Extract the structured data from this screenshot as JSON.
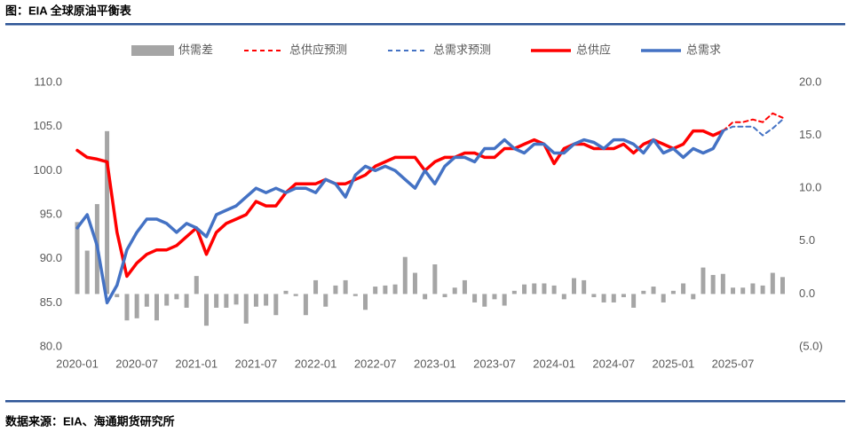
{
  "title": "图：EIA 全球原油平衡表",
  "source": "数据来源：EIA、海通期货研究所",
  "chart_data": {
    "type": "combo",
    "categories": [
      "2020-01",
      null,
      null,
      null,
      null,
      null,
      "2020-07",
      null,
      null,
      null,
      null,
      null,
      "2021-01",
      null,
      null,
      null,
      null,
      null,
      "2021-07",
      null,
      null,
      null,
      null,
      null,
      "2022-01",
      null,
      null,
      null,
      null,
      null,
      "2022-07",
      null,
      null,
      null,
      null,
      null,
      "2023-01",
      null,
      null,
      null,
      null,
      null,
      "2023-07",
      null,
      null,
      null,
      null,
      null,
      "2024-01",
      null,
      null,
      null,
      null,
      null,
      "2024-07",
      null,
      null,
      null,
      null,
      null,
      "2025-01",
      null,
      null,
      null,
      null,
      null,
      "2025-07",
      null,
      null,
      null,
      null,
      null
    ],
    "ylim": [
      80,
      110
    ],
    "yticks": [
      {
        "value": 80,
        "label": "80.0"
      },
      {
        "value": 85,
        "label": "85.0"
      },
      {
        "value": 90,
        "label": "90.0"
      },
      {
        "value": 95,
        "label": "95.0"
      },
      {
        "value": 100,
        "label": "100.0"
      },
      {
        "value": 105,
        "label": "105.0"
      },
      {
        "value": 110,
        "label": "110.0"
      }
    ],
    "y2lim": [
      -5,
      20
    ],
    "y2ticks": [
      {
        "value": -5,
        "label": "(5.0)"
      },
      {
        "value": 0,
        "label": "0.0"
      },
      {
        "value": 5,
        "label": "5.0"
      },
      {
        "value": 10,
        "label": "10.0"
      },
      {
        "value": 15,
        "label": "15.0"
      },
      {
        "value": 20,
        "label": "20.0"
      }
    ],
    "series": [
      {
        "name": "供需差",
        "type": "bar",
        "axis": "y2",
        "color": "#a5a5a5",
        "values": [
          6.8,
          4.1,
          8.5,
          15.4,
          -0.3,
          -2.5,
          -2.3,
          -1.2,
          -2.5,
          -1.1,
          -0.5,
          -1.3,
          1.7,
          -3.0,
          -1.3,
          -1.3,
          -1.0,
          -2.8,
          -1.2,
          -1.1,
          -2.0,
          0.3,
          -0.2,
          -2.0,
          1.3,
          -1.2,
          0.8,
          1.3,
          -0.2,
          -1.5,
          0.7,
          0.8,
          0.9,
          3.5,
          2.0,
          -0.5,
          2.8,
          -0.3,
          0.6,
          1.3,
          -0.8,
          -1.2,
          -0.5,
          -1.1,
          0.3,
          0.9,
          1.0,
          1.0,
          0.8,
          -0.5,
          1.5,
          1.3,
          -0.3,
          -0.8,
          -0.8,
          -0.3,
          -1.3,
          0.3,
          0.7,
          -0.8,
          0.3,
          1.0,
          -0.5,
          2.5,
          1.8,
          1.9,
          0.6,
          0.6,
          1.0,
          0.8,
          2.0,
          1.6
        ]
      },
      {
        "name": "总供应预测",
        "type": "line",
        "dash": true,
        "color": "#ff0000",
        "values": [
          null,
          null,
          null,
          null,
          null,
          null,
          null,
          null,
          null,
          null,
          null,
          null,
          null,
          null,
          null,
          null,
          null,
          null,
          null,
          null,
          null,
          null,
          null,
          null,
          null,
          null,
          null,
          null,
          null,
          null,
          null,
          null,
          null,
          null,
          null,
          null,
          null,
          null,
          null,
          null,
          null,
          null,
          null,
          null,
          null,
          null,
          null,
          null,
          null,
          null,
          null,
          null,
          null,
          null,
          null,
          null,
          null,
          null,
          null,
          null,
          null,
          null,
          null,
          null,
          null,
          104.5,
          105.5,
          105.5,
          105.8,
          105.5,
          106.5,
          106.0
        ]
      },
      {
        "name": "总需求预测",
        "type": "line",
        "dash": true,
        "color": "#4472c4",
        "values": [
          null,
          null,
          null,
          null,
          null,
          null,
          null,
          null,
          null,
          null,
          null,
          null,
          null,
          null,
          null,
          null,
          null,
          null,
          null,
          null,
          null,
          null,
          null,
          null,
          null,
          null,
          null,
          null,
          null,
          null,
          null,
          null,
          null,
          null,
          null,
          null,
          null,
          null,
          null,
          null,
          null,
          null,
          null,
          null,
          null,
          null,
          null,
          null,
          null,
          null,
          null,
          null,
          null,
          null,
          null,
          null,
          null,
          null,
          null,
          null,
          null,
          null,
          null,
          null,
          null,
          104.5,
          105.0,
          105.0,
          105.0,
          104.0,
          104.8,
          105.8
        ]
      },
      {
        "name": "总供应",
        "type": "line",
        "dash": false,
        "color": "#ff0000",
        "values": [
          102.3,
          101.5,
          101.3,
          101.0,
          93.0,
          88.0,
          89.5,
          90.5,
          91.0,
          91.0,
          91.5,
          92.5,
          93.5,
          90.5,
          93.0,
          94.0,
          94.5,
          95.0,
          96.5,
          96.0,
          96.0,
          97.5,
          98.5,
          98.5,
          98.5,
          99.0,
          98.5,
          98.5,
          99.0,
          99.5,
          100.5,
          101.0,
          101.5,
          101.5,
          101.5,
          100.0,
          101.0,
          101.5,
          101.5,
          102.0,
          102.0,
          101.5,
          101.5,
          102.5,
          102.5,
          103.0,
          103.5,
          103.0,
          100.8,
          102.5,
          103.0,
          103.0,
          102.5,
          102.5,
          102.5,
          103.0,
          102.0,
          103.0,
          103.5,
          103.0,
          102.5,
          103.0,
          104.5,
          104.5,
          104.0,
          104.5,
          null,
          null,
          null,
          null,
          null,
          null
        ]
      },
      {
        "name": "总需求",
        "type": "line",
        "dash": false,
        "color": "#4472c4",
        "values": [
          93.5,
          95.0,
          91.5,
          85.0,
          87.0,
          91.0,
          93.0,
          94.5,
          94.5,
          94.0,
          93.0,
          94.0,
          93.5,
          92.5,
          95.0,
          95.5,
          96.0,
          97.0,
          98.0,
          97.5,
          98.0,
          97.5,
          98.0,
          98.0,
          97.5,
          99.0,
          98.5,
          97.0,
          99.5,
          100.5,
          100.0,
          100.5,
          100.0,
          99.0,
          98.0,
          100.0,
          98.5,
          100.5,
          101.5,
          101.5,
          101.0,
          102.5,
          102.5,
          103.5,
          102.5,
          102.0,
          103.0,
          103.0,
          102.0,
          102.0,
          103.0,
          103.5,
          103.2,
          102.5,
          103.5,
          103.5,
          103.0,
          102.0,
          103.5,
          102.0,
          102.5,
          101.5,
          102.5,
          102.0,
          102.5,
          104.5,
          null,
          null,
          null,
          null,
          null,
          null
        ]
      }
    ]
  }
}
